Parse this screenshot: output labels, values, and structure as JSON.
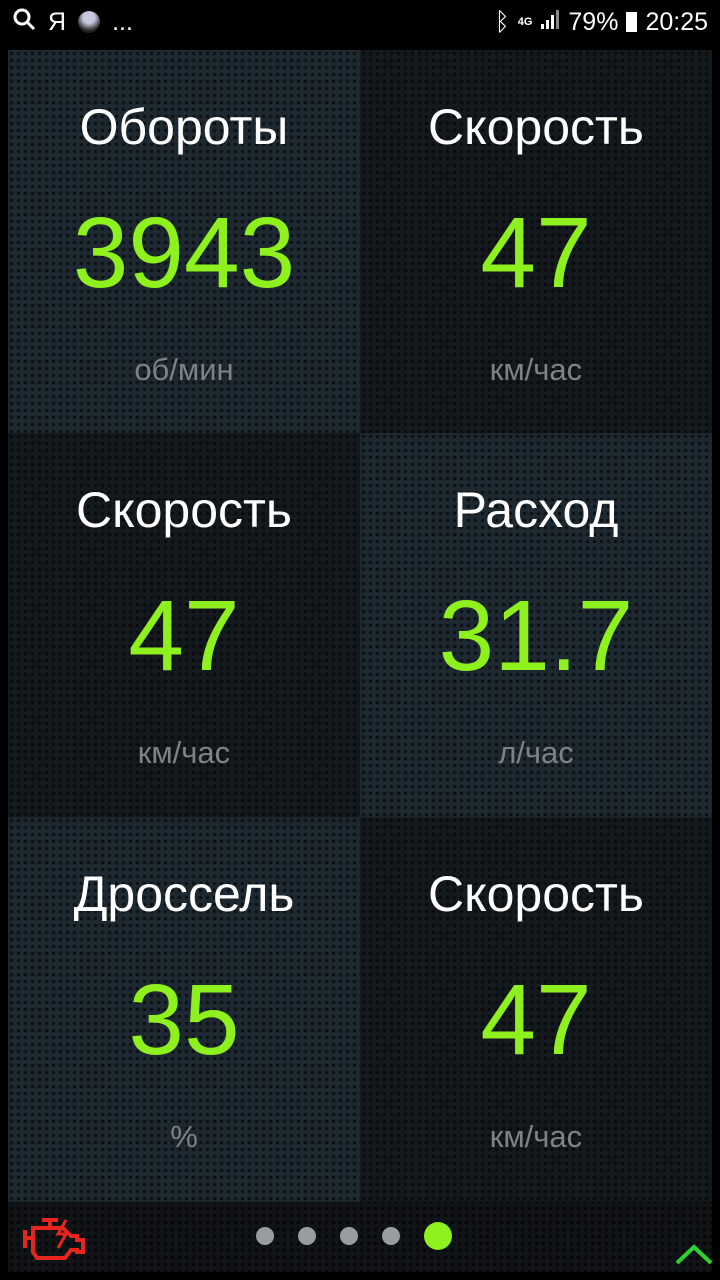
{
  "status_bar": {
    "left_icons": [
      "search-icon",
      "yandex-icon",
      "avatar-icon"
    ],
    "more": "...",
    "bluetooth": "bluetooth-icon",
    "network": "4G",
    "battery": "79%",
    "time": "20:25"
  },
  "gauges": [
    {
      "title": "Обороты",
      "value": "3943",
      "unit": "об/мин"
    },
    {
      "title": "Скорость",
      "value": "47",
      "unit": "км/час"
    },
    {
      "title": "Скорость",
      "value": "47",
      "unit": "км/час"
    },
    {
      "title": "Расход",
      "value": "31.7",
      "unit": "л/час"
    },
    {
      "title": "Дроссель",
      "value": "35",
      "unit": "%"
    },
    {
      "title": "Скорость",
      "value": "47",
      "unit": "км/час"
    }
  ],
  "pager": {
    "pages": 5,
    "current": 5
  },
  "colors": {
    "value": "#8ef01c",
    "check_engine": "#e8241e",
    "expand": "#2ed12e"
  }
}
